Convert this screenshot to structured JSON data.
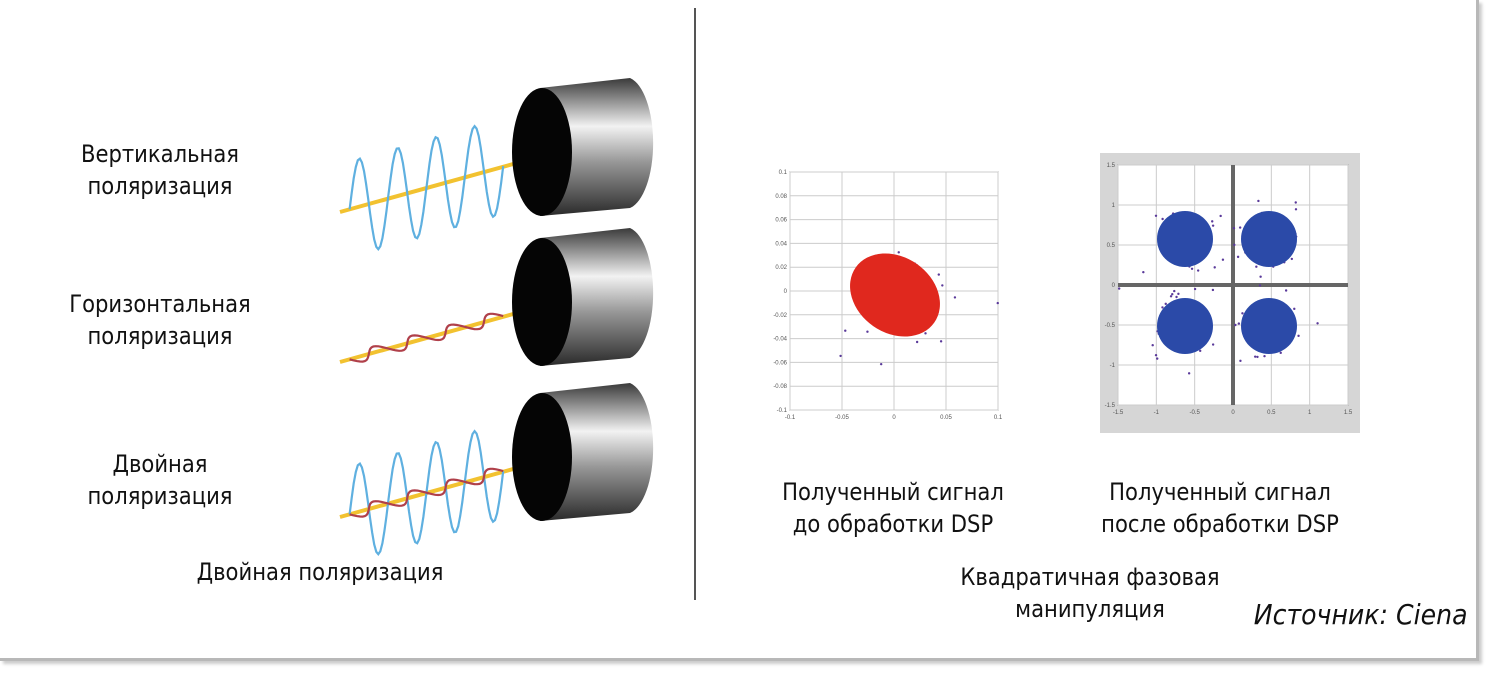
{
  "left_panel": {
    "rows": [
      {
        "label_line1": "Вертикальная",
        "label_line2": "поляризация",
        "wave": "vertical"
      },
      {
        "label_line1": "Горизонтальная",
        "label_line2": "поляризация",
        "wave": "horizontal"
      },
      {
        "label_line1": "Двойная",
        "label_line2": "поляризация",
        "wave": "dual"
      }
    ],
    "caption": "Двойная поляризация"
  },
  "right_panel": {
    "plot_before": {
      "x_ticks": [
        "-0.1",
        "-0.05",
        "0",
        "0.05",
        "0.1"
      ],
      "y_ticks": [
        "0.1",
        "0.08",
        "0.06",
        "0.04",
        "0.02",
        "0",
        "-0.02",
        "-0.04",
        "-0.06",
        "-0.08",
        "-0.1"
      ],
      "point_color": "#e0281e",
      "caption_line1": "Полученный сигнал",
      "caption_line2": "до обработки DSP"
    },
    "plot_after": {
      "x_ticks": [
        "-1.5",
        "-1",
        "-0.5",
        "0",
        "0.5",
        "1",
        "1.5"
      ],
      "y_ticks": [
        "1.5",
        "1",
        "0.5",
        "0",
        "-0.5",
        "-1",
        "-1.5"
      ],
      "point_color": "#2b4aa8",
      "caption_line1": "Полученный сигнал",
      "caption_line2": "после обработки DSP"
    },
    "caption": "Квадратичная фазовая манипуляция"
  },
  "source": "Источник: Ciena",
  "colors": {
    "vertical_wave": "#5fb0e0",
    "horizontal_wave": "#b0404a",
    "beam": "#f2c230"
  }
}
